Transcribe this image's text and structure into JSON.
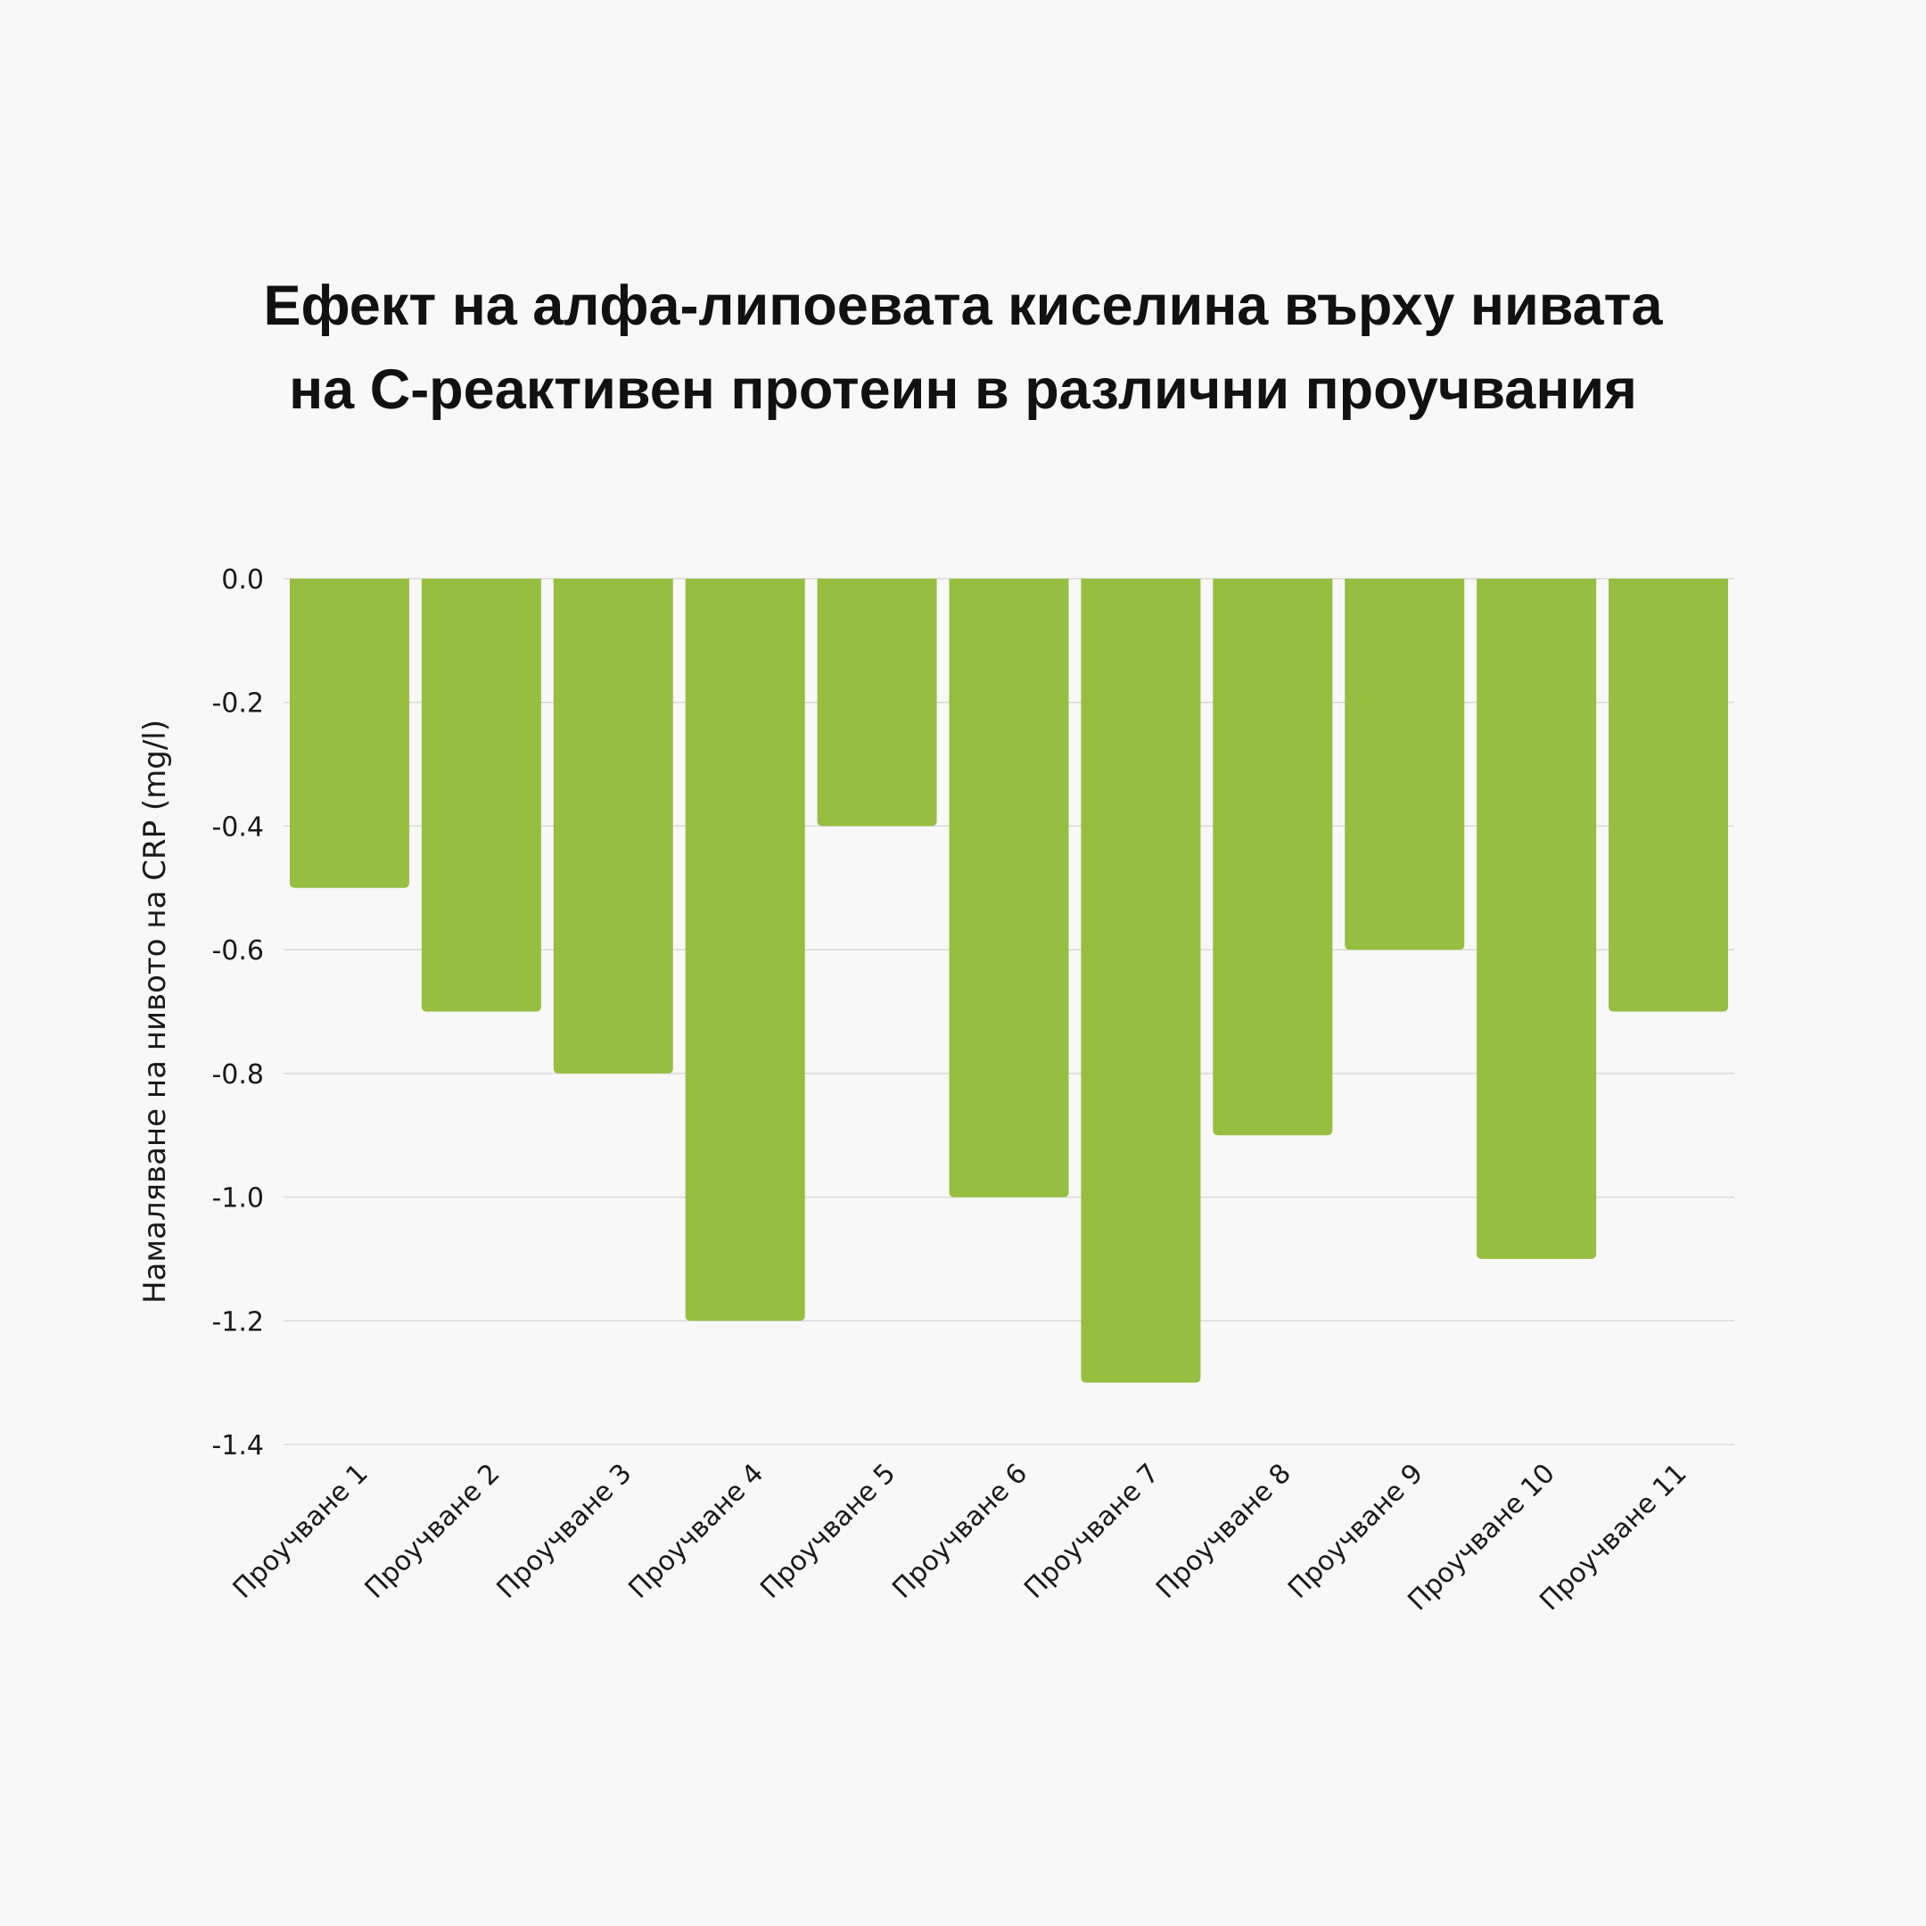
{
  "title_lines": [
    "Ефект на алфа-липоевата киселина върху нивата",
    "на C-реактивен протеин в различни проучвания"
  ],
  "chart_data": {
    "type": "bar",
    "title": "Ефект на алфа-липоевата киселина върху нивата на C-реактивен протеин в различни проучвания",
    "xlabel": "",
    "ylabel": "Намаляване на нивото на CRP (mg/l)",
    "categories": [
      "Проучване 1",
      "Проучване 2",
      "Проучване 3",
      "Проучване 4",
      "Проучване 5",
      "Проучване 6",
      "Проучване 7",
      "Проучване 8",
      "Проучване 9",
      "Проучване 10",
      "Проучване 11"
    ],
    "values": [
      -0.5,
      -0.7,
      -0.8,
      -1.2,
      -0.4,
      -1.0,
      -1.3,
      -0.9,
      -0.6,
      -1.1,
      -0.7
    ],
    "ylim": [
      -1.4,
      0.0
    ],
    "yticks": [
      "0.0",
      "-0.2",
      "-0.4",
      "-0.6",
      "-0.8",
      "-1.0",
      "-1.2",
      "-1.4"
    ],
    "grid": true,
    "legend": "none",
    "bar_color": "#96be40",
    "grid_color": "#d9d9d9"
  }
}
